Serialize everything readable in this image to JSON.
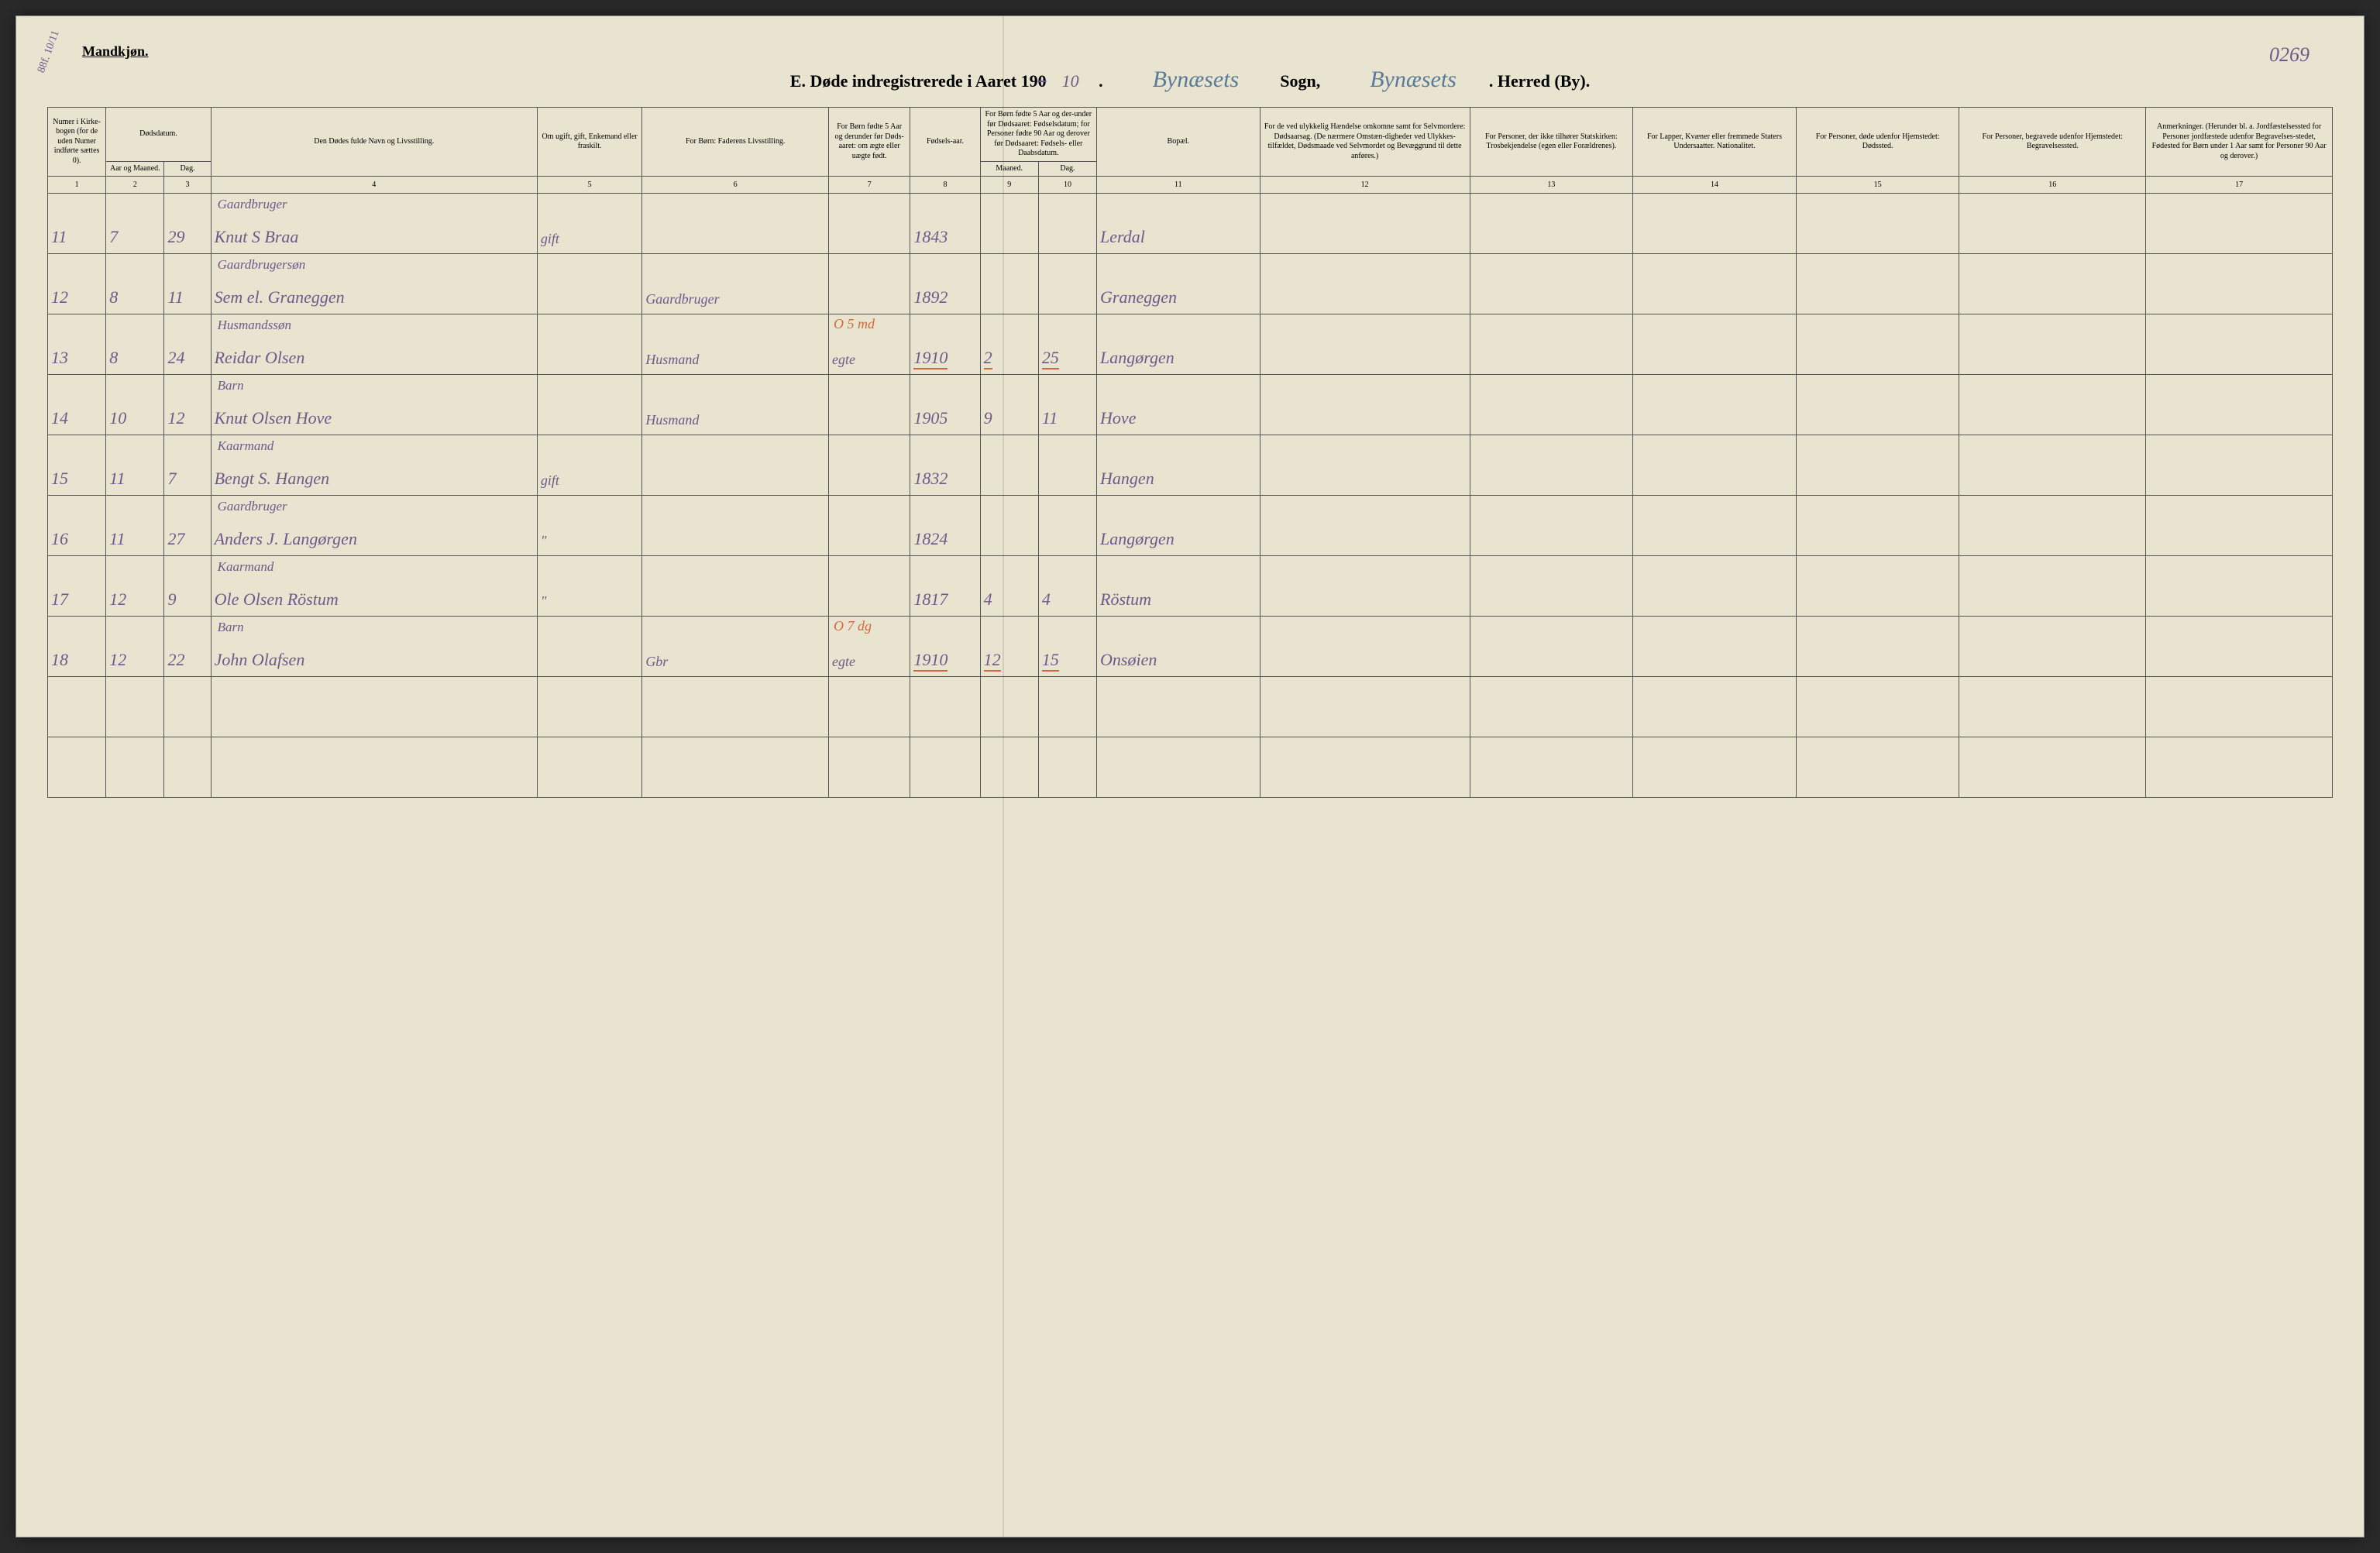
{
  "page": {
    "corner_label": "Mandkjøn.",
    "page_number": "0269",
    "side_annotation": "88f. 10/11",
    "title_prefix": "E.  Døde indregistrerede i Aaret 19",
    "year_struck": "0",
    "year_written": "10",
    "sogn_label": "Sogn,",
    "sogn_value": "Bynæsets",
    "herred_label": ". Herred (By).",
    "herred_value": "Bynæsets"
  },
  "headers": {
    "h1": "Numer i Kirke-bogen (for de uden Numer indførte sættes 0).",
    "h2a": "Dødsdatum.",
    "h2b": "Aar og Maaned.",
    "h2c": "Dag.",
    "h4": "Den Dødes fulde Navn og Livsstilling.",
    "h5": "Om ugift, gift, Enkemand eller fraskilt.",
    "h6": "For Børn: Faderens Livsstilling.",
    "h7": "For Børn fødte 5 Aar og derunder før Døds-aaret: om ægte eller uægte født.",
    "h8": "Fødsels-aar.",
    "h9a": "For Børn fødte 5 Aar og der-under før Dødsaaret: Fødselsdatum; for Personer fødte 90 Aar og derover før Dødsaaret: Fødsels- eller Daabsdatum.",
    "h9b": "Maaned.",
    "h9c": "Dag.",
    "h11": "Bopæl.",
    "h12": "For de ved ulykkelig Hændelse omkomne samt for Selvmordere: Dødsaarsag. (De nærmere Omstæn-digheder ved Ulykkes-tilfældet, Dødsmaade ved Selvmordet og Bevæggrund til dette anføres.)",
    "h13": "For Personer, der ikke tilhører Statskirken: Trosbekjendelse (egen eller Forældrenes).",
    "h14": "For Lapper, Kvæner eller fremmede Staters Undersaatter. Nationalitet.",
    "h15": "For Personer, døde udenfor Hjemstedet: Dødssted.",
    "h16": "For Personer, begravede udenfor Hjemstedet: Begravelsessted.",
    "h17": "Anmerkninger. (Herunder bl. a. Jordfæstelsessted for Personer jordfæstede udenfor Begravelses-stedet, Fødested for Børn under 1 Aar samt for Personer 90 Aar og derover.)"
  },
  "colnums": [
    "1",
    "2",
    "3",
    "4",
    "5",
    "6",
    "7",
    "8",
    "9",
    "10",
    "11",
    "12",
    "13",
    "14",
    "15",
    "16",
    "17"
  ],
  "rows": [
    {
      "num": "11",
      "month": "7",
      "day": "29",
      "occupation": "Gaardbruger",
      "name": "Knut S Braa",
      "status": "gift",
      "father": "",
      "legit": "",
      "birth_year": "1843",
      "birth_m": "",
      "birth_d": "",
      "place": "Lerdal",
      "red": ""
    },
    {
      "num": "12",
      "month": "8",
      "day": "11",
      "occupation": "Gaardbrugersøn",
      "name": "Sem el. Graneggen",
      "status": "",
      "father": "Gaardbruger",
      "legit": "",
      "birth_year": "1892",
      "birth_m": "",
      "birth_d": "",
      "place": "Graneggen",
      "red": ""
    },
    {
      "num": "13",
      "month": "8",
      "day": "24",
      "occupation": "Husmandssøn",
      "name": "Reidar Olsen",
      "status": "",
      "father": "Husmand",
      "legit": "egte",
      "birth_year": "1910",
      "birth_m": "2",
      "birth_d": "25",
      "place": "Langørgen",
      "red": "O 5 md",
      "red_underline": true
    },
    {
      "num": "14",
      "month": "10",
      "day": "12",
      "occupation": "Barn",
      "name": "Knut Olsen Hove",
      "status": "",
      "father": "Husmand",
      "legit": "",
      "birth_year": "1905",
      "birth_m": "9",
      "birth_d": "11",
      "place": "Hove",
      "red": ""
    },
    {
      "num": "15",
      "month": "11",
      "day": "7",
      "occupation": "Kaarmand",
      "name": "Bengt S. Hangen",
      "status": "gift",
      "father": "",
      "legit": "",
      "birth_year": "1832",
      "birth_m": "",
      "birth_d": "",
      "place": "Hangen",
      "red": ""
    },
    {
      "num": "16",
      "month": "11",
      "day": "27",
      "occupation": "Gaardbruger",
      "name": "Anders J. Langørgen",
      "status": "\"",
      "father": "",
      "legit": "",
      "birth_year": "1824",
      "birth_m": "",
      "birth_d": "",
      "place": "Langørgen",
      "red": ""
    },
    {
      "num": "17",
      "month": "12",
      "day": "9",
      "occupation": "Kaarmand",
      "name": "Ole Olsen Röstum",
      "status": "\"",
      "father": "",
      "legit": "",
      "birth_year": "1817",
      "birth_m": "4",
      "birth_d": "4",
      "place": "Röstum",
      "red": ""
    },
    {
      "num": "18",
      "month": "12",
      "day": "22",
      "occupation": "Barn",
      "name": "John Olafsen",
      "status": "",
      "father": "Gbr",
      "legit": "egte",
      "birth_year": "1910",
      "birth_m": "12",
      "birth_d": "15",
      "place": "Onsøien",
      "red": "O 7 dg",
      "red_underline": true
    }
  ],
  "style": {
    "paper_bg": "#e8e4d0",
    "border_color": "#555555",
    "handwriting_color": "#6b5a8a",
    "blue_handwriting_color": "#5a7a9a",
    "red_color": "#d4663a",
    "header_fontsize": 10,
    "body_fontsize": 11,
    "hand_fontsize": 22
  }
}
